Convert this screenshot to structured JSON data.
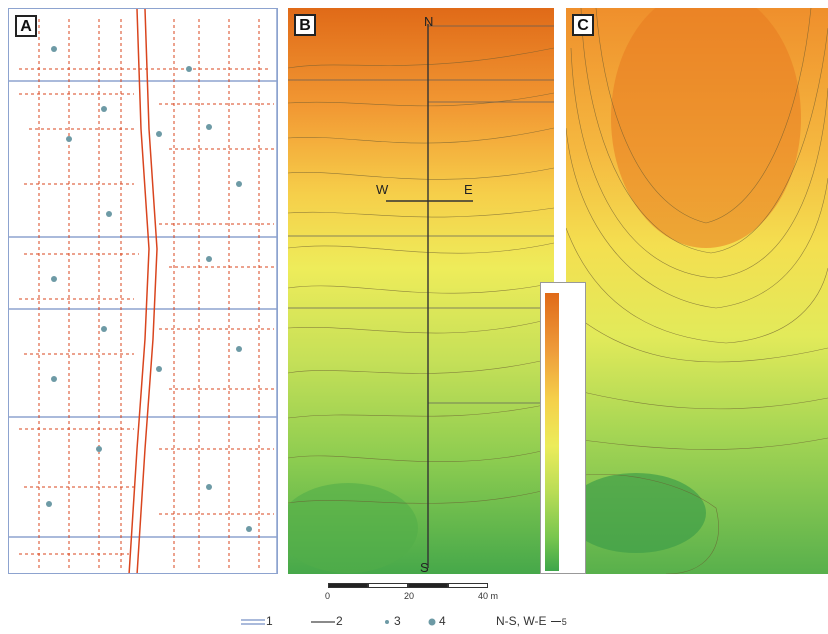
{
  "panels": {
    "a": {
      "letter": "A"
    },
    "b": {
      "letter": "B",
      "north": "N",
      "south": "S",
      "west": "W",
      "east": "E"
    },
    "c": {
      "letter": "C"
    }
  },
  "scale": {
    "ticks": [
      "0",
      "20",
      "40 m"
    ]
  },
  "legend": {
    "item1": "1",
    "item2": "2",
    "item3": "3",
    "item4": "4",
    "item5_text": "N-S, W-E",
    "item5_num": "5"
  },
  "colors": {
    "high": "#e06a18",
    "mid": "#f0e24e",
    "low": "#3ea64a",
    "canal": "#d9451e",
    "boundary": "#8da3cf"
  }
}
